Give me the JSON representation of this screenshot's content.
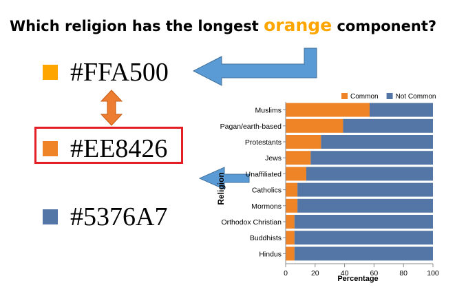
{
  "question": {
    "before": "Which religion has the longest ",
    "highlight": "orange",
    "after": " component?",
    "highlight_color": "#FFA500"
  },
  "swatches": [
    {
      "label": "#FFA500",
      "color": "#FFA500"
    },
    {
      "label": "#EE8426",
      "color": "#EE8426"
    },
    {
      "label": "#5376A7",
      "color": "#5376A7"
    }
  ],
  "annotation_colors": {
    "arrow": "#5B9BD5",
    "double_arrow": "#ED7D31",
    "box": "#E31E24"
  },
  "chart_data": {
    "type": "bar",
    "orientation": "horizontal",
    "stacked": true,
    "categories": [
      "Muslims",
      "Pagan/earth-based",
      "Protestants",
      "Jews",
      "Unaffiliated",
      "Catholics",
      "Mormons",
      "Orthodox Christian",
      "Buddhists",
      "Hindus"
    ],
    "series": [
      {
        "name": "Common",
        "color": "#EE8426",
        "values": [
          57,
          39,
          24,
          17,
          14,
          8,
          8,
          6,
          6,
          6
        ]
      },
      {
        "name": "Not Common",
        "color": "#5376A7",
        "values": [
          43,
          61,
          76,
          83,
          86,
          92,
          92,
          94,
          94,
          94
        ]
      }
    ],
    "xlabel": "Percentage",
    "ylabel": "Religion",
    "xlim": [
      0,
      100
    ],
    "xticks": [
      0,
      20,
      40,
      60,
      80,
      100
    ],
    "legend_position": "top-right",
    "grid": false
  }
}
